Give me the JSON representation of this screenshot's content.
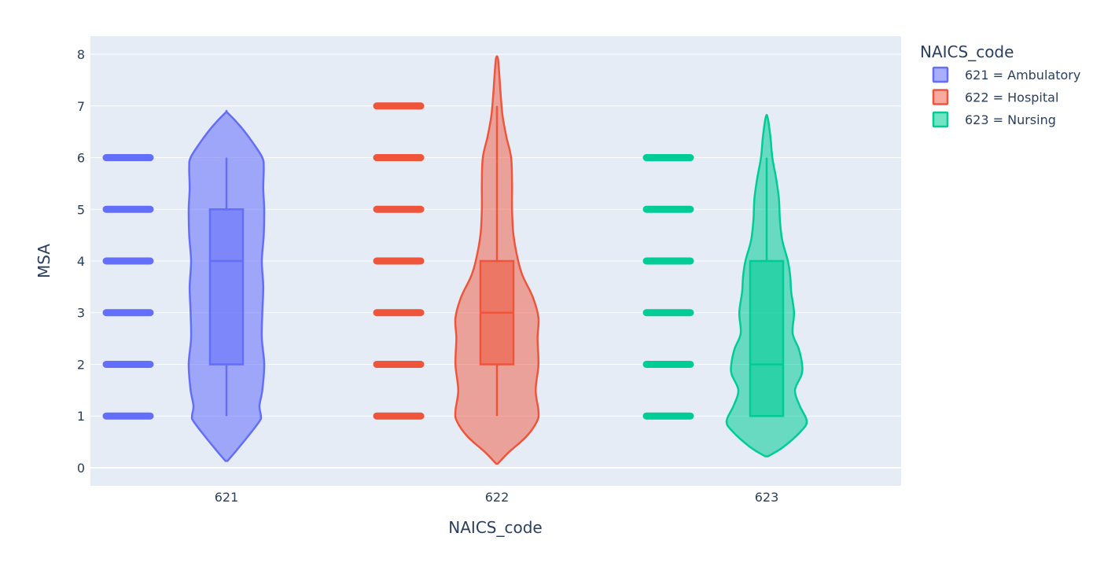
{
  "chart_data": {
    "type": "violin",
    "xlabel": "NAICS_code",
    "ylabel": "MSA",
    "categories": [
      "621",
      "622",
      "623"
    ],
    "ylim": [
      -0.35,
      8.35
    ],
    "yticks": [
      0,
      1,
      2,
      3,
      4,
      5,
      6,
      7,
      8
    ],
    "grid": true,
    "legend": {
      "title": "NAICS_code",
      "placement": "top-right",
      "entries": [
        "621 = Ambulatory",
        "622 = Hospital",
        "623 = Nursing"
      ]
    },
    "series": [
      {
        "category": "621",
        "legend_index": 0,
        "color": "#636efa",
        "fill": "rgba(99,110,250,0.55)",
        "box_fill": "rgba(99,110,250,0.55)",
        "points": [
          1,
          2,
          3,
          4,
          5,
          6
        ],
        "box": {
          "q1": 2,
          "median": 4,
          "q3": 5,
          "lower_whisker": 1,
          "upper_whisker": 6
        },
        "violin_range": [
          0.13,
          6.87
        ],
        "density": [
          [
            0.13,
            0.02
          ],
          [
            0.3,
            0.18
          ],
          [
            0.6,
            0.45
          ],
          [
            0.9,
            0.7
          ],
          [
            1.0,
            0.73
          ],
          [
            1.2,
            0.7
          ],
          [
            1.5,
            0.76
          ],
          [
            2.0,
            0.8
          ],
          [
            2.5,
            0.75
          ],
          [
            3.0,
            0.76
          ],
          [
            3.5,
            0.78
          ],
          [
            4.0,
            0.75
          ],
          [
            4.5,
            0.79
          ],
          [
            5.0,
            0.8
          ],
          [
            5.4,
            0.78
          ],
          [
            5.8,
            0.79
          ],
          [
            6.0,
            0.76
          ],
          [
            6.3,
            0.55
          ],
          [
            6.6,
            0.3
          ],
          [
            6.87,
            0.02
          ]
        ]
      },
      {
        "category": "622",
        "legend_index": 1,
        "color": "#ef553b",
        "fill": "rgba(239,85,59,0.5)",
        "box_fill": "rgba(239,85,59,0.55)",
        "points": [
          1,
          2,
          3,
          4,
          5,
          6,
          7
        ],
        "box": {
          "q1": 2,
          "median": 3,
          "q3": 4,
          "lower_whisker": 1,
          "upper_whisker": 7
        },
        "violin_range": [
          0.08,
          7.92
        ],
        "density": [
          [
            0.08,
            0.02
          ],
          [
            0.3,
            0.25
          ],
          [
            0.6,
            0.62
          ],
          [
            0.9,
            0.85
          ],
          [
            1.1,
            0.88
          ],
          [
            1.5,
            0.82
          ],
          [
            2.0,
            0.88
          ],
          [
            2.5,
            0.86
          ],
          [
            2.9,
            0.88
          ],
          [
            3.3,
            0.76
          ],
          [
            3.7,
            0.55
          ],
          [
            4.0,
            0.45
          ],
          [
            4.5,
            0.35
          ],
          [
            5.0,
            0.32
          ],
          [
            5.5,
            0.32
          ],
          [
            6.0,
            0.3
          ],
          [
            6.4,
            0.2
          ],
          [
            6.8,
            0.12
          ],
          [
            7.2,
            0.08
          ],
          [
            7.6,
            0.05
          ],
          [
            7.92,
            0.02
          ]
        ]
      },
      {
        "category": "623",
        "legend_index": 2,
        "color": "#00cc96",
        "fill": "rgba(0,204,150,0.55)",
        "box_fill": "rgba(0,204,150,0.55)",
        "points": [
          1,
          2,
          3,
          4,
          5,
          6
        ],
        "box": {
          "q1": 1,
          "median": 2,
          "q3": 4,
          "lower_whisker": 1,
          "upper_whisker": 6
        },
        "violin_range": [
          0.22,
          6.78
        ],
        "density": [
          [
            0.22,
            0.03
          ],
          [
            0.4,
            0.35
          ],
          [
            0.7,
            0.72
          ],
          [
            0.9,
            0.85
          ],
          [
            1.2,
            0.7
          ],
          [
            1.5,
            0.6
          ],
          [
            1.8,
            0.74
          ],
          [
            2.0,
            0.75
          ],
          [
            2.3,
            0.68
          ],
          [
            2.6,
            0.55
          ],
          [
            3.0,
            0.58
          ],
          [
            3.4,
            0.52
          ],
          [
            3.7,
            0.5
          ],
          [
            4.0,
            0.45
          ],
          [
            4.4,
            0.33
          ],
          [
            4.8,
            0.28
          ],
          [
            5.2,
            0.26
          ],
          [
            5.6,
            0.2
          ],
          [
            6.0,
            0.12
          ],
          [
            6.4,
            0.08
          ],
          [
            6.78,
            0.02
          ]
        ]
      }
    ]
  }
}
